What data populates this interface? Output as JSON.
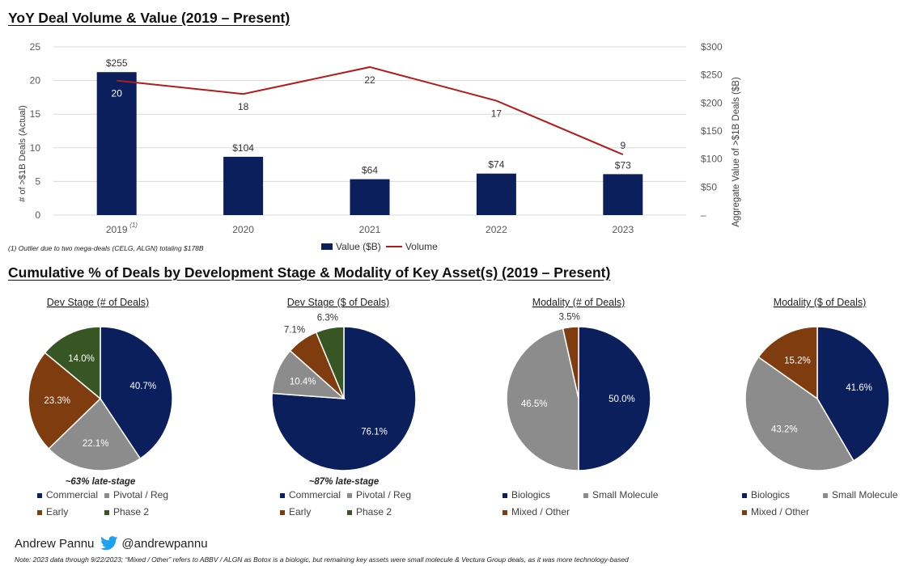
{
  "colors": {
    "navy": "#0B1F5C",
    "grey": "#8C8C8C",
    "brown": "#7F3D0F",
    "green": "#375623",
    "red": "#B31B1B",
    "axis": "#595959",
    "grid": "#D9D9D9"
  },
  "top_title": "YoY Deal Volume & Value (2019 – Present)",
  "bottom_title": "Cumulative % of Deals by Development Stage & Modality of Key Asset(s) (2019 – Present)",
  "footnote1": "(1) Outlier due to two mega-deals (CELG, ALGN) totaling $178B",
  "author_name": "Andrew Pannu",
  "author_handle": "@andrewpannu",
  "note": "Note: 2023 data through 9/22/2023; “Mixed / Other” refers to ABBV / ALGN as Botox is a biologic, but remaining key assets were small molecule & Vectura Group deals, as it was more technology-based",
  "chart_data": [
    {
      "type": "bar+line",
      "title": "YoY Deal Volume & Value (2019 – Present)",
      "categories": [
        "2019",
        "2020",
        "2021",
        "2022",
        "2023"
      ],
      "category_superscripts": [
        "(1)",
        "",
        "",
        "",
        ""
      ],
      "ylabel_left": "# of >$1B Deals (Actual)",
      "ylabel_right": "Aggregate Value of >$1B Deals ($B)",
      "ylim_left": [
        0,
        25
      ],
      "ylim_right": [
        0,
        300
      ],
      "left_ticks": [
        "0",
        "5",
        "10",
        "15",
        "20",
        "25"
      ],
      "right_ticks": [
        "–",
        "$50",
        "$100",
        "$150",
        "$200",
        "$250",
        "$300"
      ],
      "series": [
        {
          "name": "Value ($B)",
          "kind": "bar",
          "axis": "right",
          "values": [
            255,
            104,
            64,
            74,
            73
          ],
          "labels": [
            "$255",
            "$104",
            "$64",
            "$74",
            "$73"
          ]
        },
        {
          "name": "Volume",
          "kind": "line",
          "axis": "left",
          "values": [
            20,
            18,
            22,
            17,
            9
          ],
          "labels": [
            "20",
            "18",
            "22",
            "17",
            "9"
          ]
        }
      ],
      "legend": [
        "Value ($B)",
        "Volume"
      ]
    },
    {
      "type": "pie",
      "title": "Dev Stage (# of Deals)",
      "slices": [
        {
          "label": "Commercial",
          "value": 40.7,
          "text": "40.7%",
          "color": "#0B1F5C"
        },
        {
          "label": "Pivotal / Reg",
          "value": 22.1,
          "text": "22.1%",
          "color": "#8C8C8C"
        },
        {
          "label": "Early",
          "value": 23.3,
          "text": "23.3%",
          "color": "#7F3D0F"
        },
        {
          "label": "Phase 2",
          "value": 14.0,
          "text": "14.0%",
          "color": "#375623"
        }
      ],
      "annotation": "~63% late-stage"
    },
    {
      "type": "pie",
      "title": "Dev Stage ($ of Deals)",
      "slices": [
        {
          "label": "Commercial",
          "value": 76.1,
          "text": "76.1%",
          "color": "#0B1F5C"
        },
        {
          "label": "Pivotal / Reg",
          "value": 10.4,
          "text": "10.4%",
          "color": "#8C8C8C"
        },
        {
          "label": "Early",
          "value": 7.1,
          "text": "7.1%",
          "color": "#7F3D0F"
        },
        {
          "label": "Phase 2",
          "value": 6.3,
          "text": "6.3%",
          "color": "#375623"
        }
      ],
      "annotation": "~87% late-stage"
    },
    {
      "type": "pie",
      "title": "Modality (# of Deals)",
      "slices": [
        {
          "label": "Biologics",
          "value": 50.0,
          "text": "50.0%",
          "color": "#0B1F5C"
        },
        {
          "label": "Small Molecule",
          "value": 46.5,
          "text": "46.5%",
          "color": "#8C8C8C"
        },
        {
          "label": "Mixed / Other",
          "value": 3.5,
          "text": "3.5%",
          "color": "#7F3D0F"
        }
      ]
    },
    {
      "type": "pie",
      "title": "Modality ($ of Deals)",
      "slices": [
        {
          "label": "Biologics",
          "value": 41.6,
          "text": "41.6%",
          "color": "#0B1F5C"
        },
        {
          "label": "Small Molecule",
          "value": 43.2,
          "text": "43.2%",
          "color": "#8C8C8C"
        },
        {
          "label": "Mixed / Other",
          "value": 15.2,
          "text": "15.2%",
          "color": "#7F3D0F"
        }
      ]
    }
  ]
}
